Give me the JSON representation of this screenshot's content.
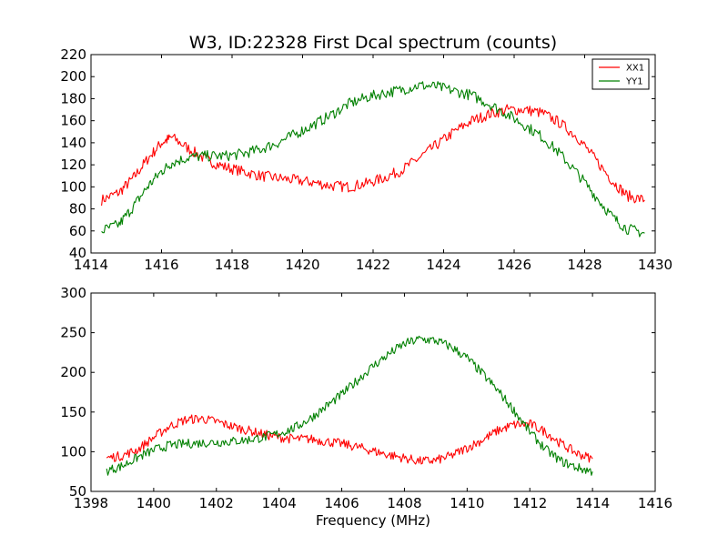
{
  "chart_data": [
    {
      "type": "line",
      "title": "W3, ID:22328 First Dcal spectrum (counts)",
      "xlabel": "",
      "ylabel": "",
      "xlim": [
        1414,
        1430
      ],
      "ylim": [
        40,
        220
      ],
      "xticks": [
        "1414",
        "1416",
        "1418",
        "1420",
        "1422",
        "1424",
        "1426",
        "1428",
        "1430"
      ],
      "yticks": [
        "40",
        "60",
        "80",
        "100",
        "120",
        "140",
        "160",
        "180",
        "200",
        "220"
      ],
      "legend": {
        "placement": "top-right",
        "entries": [
          "XX1",
          "YY1"
        ]
      },
      "series": [
        {
          "name": "XX1",
          "color": "#ff0000",
          "x": [
            1414.3,
            1414.8,
            1415.2,
            1415.6,
            1416.0,
            1416.3,
            1416.8,
            1417.3,
            1417.8,
            1418.3,
            1418.8,
            1419.3,
            1419.8,
            1420.3,
            1420.8,
            1421.3,
            1421.8,
            1422.3,
            1422.8,
            1423.3,
            1423.8,
            1424.3,
            1424.8,
            1425.3,
            1425.8,
            1426.3,
            1426.8,
            1427.3,
            1427.8,
            1428.3,
            1428.8,
            1429.2,
            1429.7
          ],
          "y": [
            88,
            95,
            108,
            125,
            140,
            145,
            134,
            124,
            118,
            114,
            110,
            108,
            106,
            104,
            101,
            100,
            103,
            108,
            115,
            126,
            138,
            150,
            160,
            166,
            170,
            170,
            167,
            158,
            145,
            125,
            105,
            92,
            88
          ]
        },
        {
          "name": "YY1",
          "color": "#008000",
          "x": [
            1414.3,
            1414.8,
            1415.2,
            1415.6,
            1416.0,
            1416.3,
            1416.8,
            1417.3,
            1417.8,
            1418.3,
            1418.8,
            1419.3,
            1419.8,
            1420.3,
            1420.8,
            1421.3,
            1421.8,
            1422.3,
            1422.8,
            1423.3,
            1423.8,
            1424.3,
            1424.8,
            1425.3,
            1425.8,
            1426.3,
            1426.8,
            1427.3,
            1427.8,
            1428.3,
            1428.8,
            1429.2,
            1429.7
          ],
          "y": [
            60,
            66,
            82,
            100,
            114,
            122,
            127,
            128,
            128,
            130,
            134,
            140,
            148,
            156,
            165,
            175,
            181,
            185,
            188,
            192,
            191,
            187,
            183,
            175,
            166,
            156,
            145,
            130,
            112,
            92,
            72,
            62,
            58
          ]
        }
      ]
    },
    {
      "type": "line",
      "title": "",
      "xlabel": "Frequency (MHz)",
      "ylabel": "",
      "xlim": [
        1398,
        1416
      ],
      "ylim": [
        50,
        300
      ],
      "xticks": [
        "1398",
        "1400",
        "1402",
        "1404",
        "1406",
        "1408",
        "1410",
        "1412",
        "1414",
        "1416"
      ],
      "yticks": [
        "50",
        "100",
        "150",
        "200",
        "250",
        "300"
      ],
      "series": [
        {
          "name": "XX1",
          "color": "#ff0000",
          "x": [
            1398.5,
            1399.0,
            1399.5,
            1400.0,
            1400.5,
            1401.0,
            1401.5,
            1402.0,
            1402.5,
            1403.0,
            1403.5,
            1404.0,
            1404.5,
            1405.0,
            1405.5,
            1406.0,
            1406.5,
            1407.0,
            1407.5,
            1408.0,
            1408.5,
            1409.0,
            1409.5,
            1410.0,
            1410.5,
            1411.0,
            1411.5,
            1412.0,
            1412.5,
            1413.0,
            1413.5,
            1414.0
          ],
          "y": [
            92,
            95,
            103,
            118,
            132,
            140,
            142,
            138,
            132,
            127,
            122,
            118,
            116,
            116,
            113,
            110,
            106,
            101,
            96,
            92,
            88,
            89,
            95,
            105,
            115,
            127,
            134,
            135,
            125,
            110,
            98,
            91
          ]
        },
        {
          "name": "YY1",
          "color": "#008000",
          "x": [
            1398.5,
            1399.0,
            1399.5,
            1400.0,
            1400.5,
            1401.0,
            1401.5,
            1402.0,
            1402.5,
            1403.0,
            1403.5,
            1404.0,
            1404.5,
            1405.0,
            1405.5,
            1406.0,
            1406.5,
            1407.0,
            1407.5,
            1408.0,
            1408.5,
            1409.0,
            1409.5,
            1410.0,
            1410.5,
            1411.0,
            1411.5,
            1412.0,
            1412.5,
            1413.0,
            1413.5,
            1414.0
          ],
          "y": [
            76,
            82,
            93,
            102,
            108,
            110,
            111,
            112,
            113,
            115,
            118,
            123,
            130,
            142,
            157,
            172,
            190,
            208,
            223,
            236,
            242,
            240,
            232,
            218,
            198,
            176,
            152,
            125,
            103,
            88,
            80,
            75
          ]
        }
      ]
    }
  ]
}
